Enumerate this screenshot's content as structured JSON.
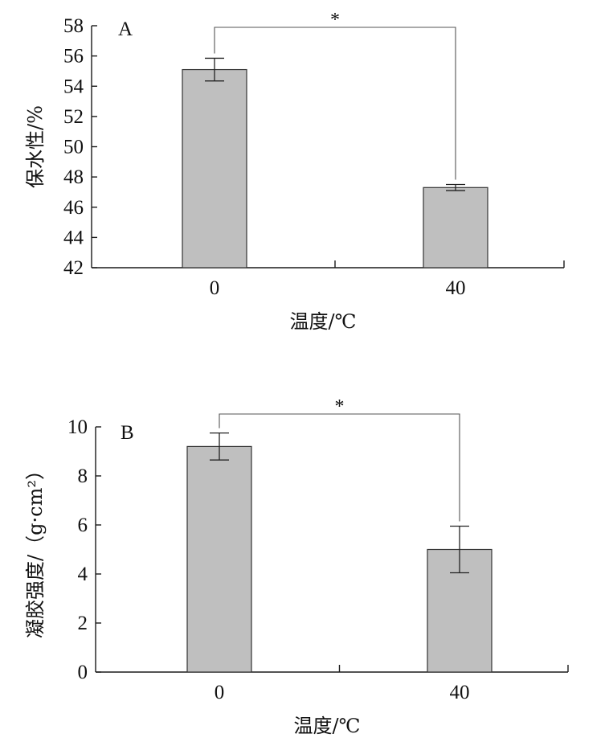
{
  "chart_data": [
    {
      "type": "bar",
      "panel_label": "A",
      "categories": [
        "0",
        "40"
      ],
      "values": [
        55.1,
        47.3
      ],
      "errors": [
        0.75,
        0.2
      ],
      "ylabel": "保水性/%",
      "xlabel": "温度/℃",
      "ylim": [
        42,
        58
      ],
      "yticks": [
        "42",
        "44",
        "46",
        "48",
        "50",
        "52",
        "54",
        "56",
        "58"
      ],
      "significance": "*",
      "bar_color": "#bfbfbf"
    },
    {
      "type": "bar",
      "panel_label": "B",
      "categories": [
        "0",
        "40"
      ],
      "values": [
        9.2,
        5.0
      ],
      "errors": [
        0.55,
        0.95
      ],
      "ylabel": "凝胶强度/（g·cm²）",
      "xlabel": "温度/℃",
      "ylim": [
        0,
        10
      ],
      "yticks": [
        "0",
        "2",
        "4",
        "6",
        "8",
        "10"
      ],
      "significance": "*",
      "bar_color": "#bfbfbf"
    }
  ]
}
